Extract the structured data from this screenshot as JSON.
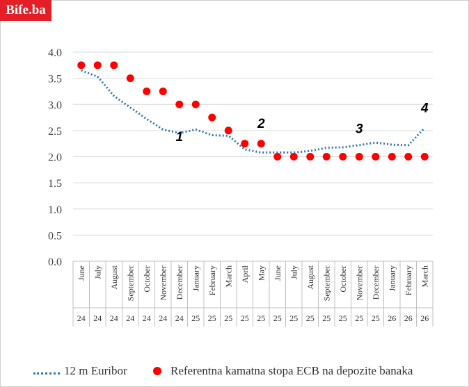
{
  "brand": {
    "logo_text": "Bife.ba",
    "logo_color": "#e41e26"
  },
  "chart_data": {
    "type": "line",
    "title": "",
    "xlabel": "",
    "ylabel": "",
    "ylim": [
      0,
      4
    ],
    "yticks": [
      "0.0",
      "0.5",
      "1.0",
      "1.5",
      "2.0",
      "2.5",
      "3.0",
      "3.5",
      "4.0"
    ],
    "grid": true,
    "legend_position": "bottom",
    "categories": [
      "June",
      "July",
      "August",
      "September",
      "October",
      "November",
      "December",
      "January",
      "February",
      "March",
      "April",
      "May",
      "June",
      "July",
      "August",
      "September",
      "October",
      "November",
      "December",
      "January",
      "February",
      "March"
    ],
    "years": [
      "24",
      "24",
      "24",
      "24",
      "24",
      "24",
      "24",
      "25",
      "25",
      "25",
      "25",
      "25",
      "25",
      "25",
      "25",
      "25",
      "25",
      "25",
      "25",
      "26",
      "26",
      "26"
    ],
    "series": [
      {
        "name": "12 m Euribor",
        "style": "dotted-line",
        "color": "#2e75b6",
        "values": [
          3.65,
          3.53,
          3.16,
          2.94,
          2.72,
          2.52,
          2.45,
          2.52,
          2.41,
          2.4,
          2.14,
          2.08,
          2.08,
          2.08,
          2.11,
          2.17,
          2.18,
          2.22,
          2.27,
          2.23,
          2.22,
          2.55
        ]
      },
      {
        "name": "Referentna kamatna stopa ECB na depozite banaka",
        "style": "markers",
        "color": "#ff0000",
        "values": [
          3.75,
          3.75,
          3.75,
          3.5,
          3.25,
          3.25,
          3.0,
          3.0,
          2.75,
          2.5,
          2.25,
          2.25,
          2.0,
          2.0,
          2.0,
          2.0,
          2.0,
          2.0,
          2.0,
          2.0,
          2.0,
          2.0
        ]
      }
    ],
    "annotations": [
      {
        "text": "1",
        "x": "December",
        "x_year": "24",
        "y": 2.3
      },
      {
        "text": "2",
        "x": "May",
        "x_year": "25",
        "y": 2.55
      },
      {
        "text": "3",
        "x": "November",
        "x_year": "25",
        "y": 2.45
      },
      {
        "text": "4",
        "x": "March",
        "x_year": "26",
        "y": 2.85
      }
    ]
  }
}
